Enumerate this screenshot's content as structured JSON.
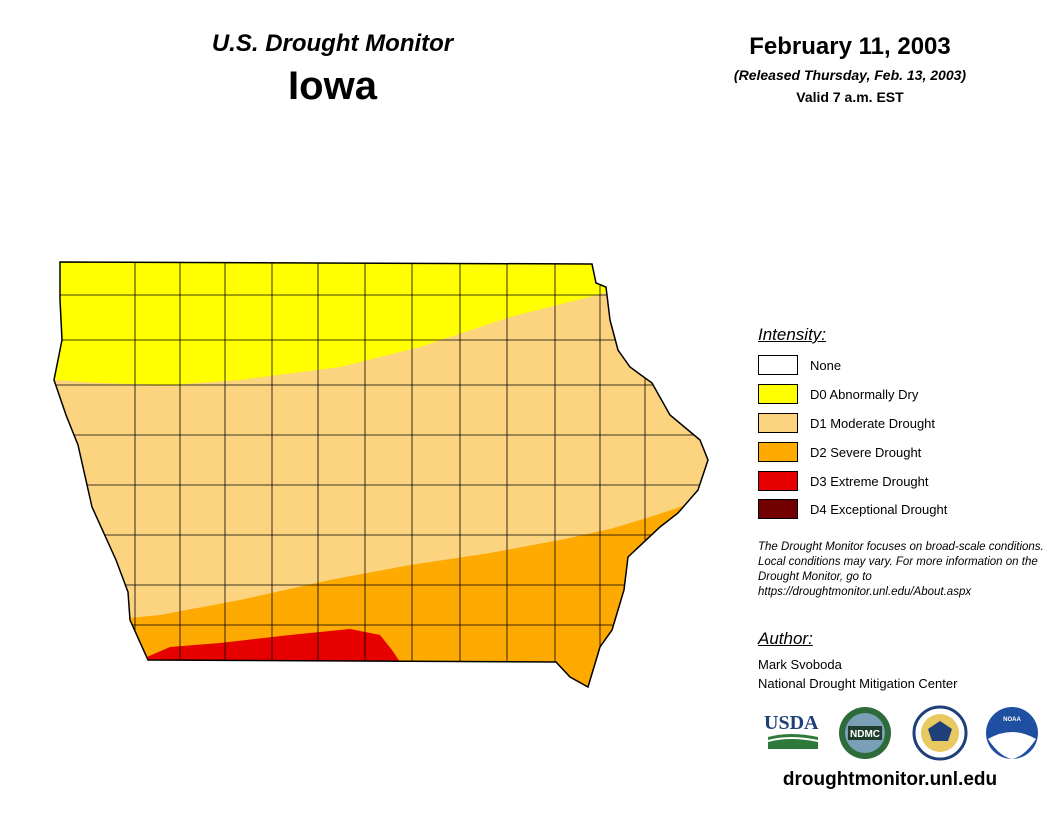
{
  "header": {
    "product": "U.S. Drought Monitor",
    "state": "Iowa",
    "date": "February 11, 2003",
    "released": "(Released Thursday, Feb. 13, 2003)",
    "valid": "Valid 7 a.m. EST"
  },
  "legend": {
    "title": "Intensity:",
    "items": [
      {
        "label": "None",
        "color": "#ffffff"
      },
      {
        "label": "D0 Abnormally Dry",
        "color": "#ffff00"
      },
      {
        "label": "D1 Moderate Drought",
        "color": "#fcd37f"
      },
      {
        "label": "D2 Severe Drought",
        "color": "#ffaa00"
      },
      {
        "label": "D3 Extreme Drought",
        "color": "#e60000"
      },
      {
        "label": "D4 Exceptional Drought",
        "color": "#730000"
      }
    ]
  },
  "note": "The Drought Monitor focuses on broad-scale conditions. Local conditions may vary. For more information on the Drought Monitor, go to https://droughtmonitor.unl.edu/About.aspx",
  "author": {
    "title": "Author:",
    "name": "Mark Svoboda",
    "org": "National Drought Mitigation Center"
  },
  "logos": {
    "usda": "USDA",
    "ndmc": "NDMC",
    "noaa": "NOAA"
  },
  "footer": {
    "url": "droughtmonitor.unl.edu"
  }
}
